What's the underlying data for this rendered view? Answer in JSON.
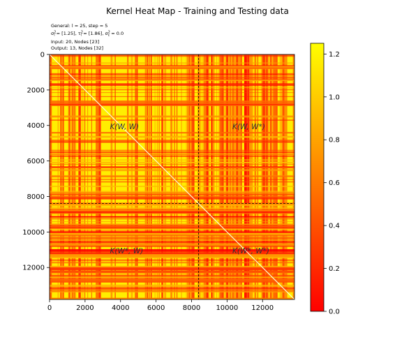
{
  "chart_data": {
    "type": "heatmap",
    "title": "Kernel Heat Map - Training and Testing data",
    "info_lines": [
      "General: l = 25, step = 5",
      "σ_l² = [1.25], τ_l² = [1.86], σ_ε² = 0.0",
      "Input: 20, Nodes [23]",
      "Output: 13, Nodes [32]"
    ],
    "x_ticks": [
      "0",
      "2000",
      "4000",
      "6000",
      "8000",
      "10000",
      "12000"
    ],
    "y_ticks": [
      "0",
      "2000",
      "4000",
      "6000",
      "8000",
      "10000",
      "12000"
    ],
    "xlim": [
      0,
      13800
    ],
    "ylim": [
      13800,
      0
    ],
    "split_index": 8400,
    "colormap": "autumn",
    "colormap_colors": [
      "#ff0000",
      "#ffff00"
    ],
    "colorbar": {
      "range": [
        0,
        1.25
      ],
      "ticks": [
        "0.0",
        "0.2",
        "0.4",
        "0.6",
        "0.8",
        "1.0",
        "1.2"
      ]
    },
    "block_labels": [
      {
        "text": "K(W, W)",
        "x": 3400,
        "y": 4200
      },
      {
        "text": "K(W, W*)",
        "x": 10300,
        "y": 4200
      },
      {
        "text": "K(W*, W)",
        "x": 3400,
        "y": 11200
      },
      {
        "text": "K(W*, W*)",
        "x": 10300,
        "y": 11200
      }
    ],
    "diagonal_value": 1.25,
    "off_diagonal_mean": 1.0
  }
}
